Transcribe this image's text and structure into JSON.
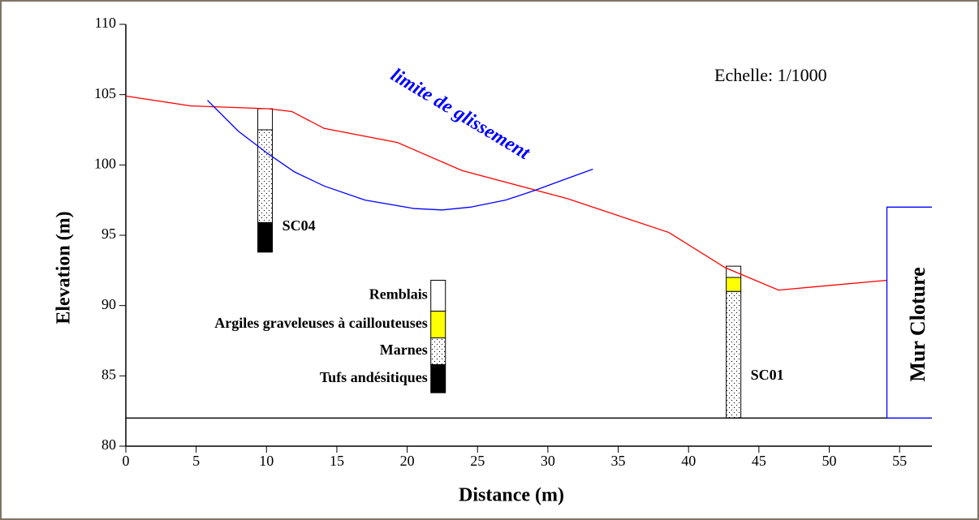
{
  "chart_data": {
    "type": "line",
    "xlabel": "Distance (m)",
    "ylabel": "Elevation (m)",
    "xlim": [
      0,
      57.3
    ],
    "ylim": [
      80,
      110
    ],
    "xticks": [
      0,
      5,
      10,
      15,
      20,
      25,
      30,
      35,
      40,
      45,
      50,
      55
    ],
    "yticks": [
      80,
      85,
      90,
      95,
      100,
      105,
      110
    ],
    "series": [
      {
        "color": "#ff0000",
        "x": [
          0,
          4.6,
          10.1,
          11.8,
          14.1,
          19.3,
          23.9,
          31.4,
          38.6,
          42.6,
          46.4,
          54.1
        ],
        "values": [
          104.9,
          104.2,
          104.0,
          103.8,
          102.6,
          101.6,
          99.6,
          97.6,
          95.2,
          92.7,
          91.1,
          91.8
        ]
      },
      {
        "name": "limite de glissement",
        "color": "#0000ff",
        "x": [
          5.8,
          8,
          10.1,
          12,
          14.1,
          17,
          20.5,
          22.5,
          24.5,
          27,
          29.1,
          31,
          33.2
        ],
        "values": [
          104.6,
          102.4,
          100.8,
          99.5,
          98.5,
          97.5,
          96.9,
          96.8,
          97.0,
          97.5,
          98.2,
          98.9,
          99.7
        ]
      },
      {
        "name": "Mur Cloture",
        "color": "#0000ff",
        "x": [
          57.3,
          54.1,
          54.1,
          57.3
        ],
        "values": [
          82,
          82,
          97,
          97
        ]
      },
      {
        "color": "#000000",
        "x": [
          0,
          54.1
        ],
        "values": [
          82,
          82
        ]
      }
    ],
    "annotation": "Echelle: 1/1000",
    "legend": [
      {
        "name": "Remblais",
        "fill": "#ffffff",
        "top": 91.8,
        "bottom": 89.6
      },
      {
        "name": "Argiles graveleuses à caillouteuses",
        "fill": "#ffff00",
        "top": 89.6,
        "bottom": 87.7
      },
      {
        "name": "Marnes",
        "fill": "dots",
        "top": 87.7,
        "bottom": 85.8
      },
      {
        "name": "Tufs andésitiques",
        "fill": "#000000",
        "top": 85.8,
        "bottom": 83.8
      }
    ],
    "legend_x": 22.2,
    "boreholes": [
      {
        "name": "SC04",
        "x": 9.9,
        "layers": [
          {
            "fill": "#ffffff",
            "top": 104.0,
            "bottom": 102.5
          },
          {
            "fill": "dots",
            "top": 102.5,
            "bottom": 95.9
          },
          {
            "fill": "#000000",
            "top": 95.9,
            "bottom": 93.8
          }
        ]
      },
      {
        "name": "SC01",
        "x": 43.2,
        "layers": [
          {
            "fill": "#ffffff",
            "top": 92.8,
            "bottom": 92.0
          },
          {
            "fill": "#ffff00",
            "top": 92.0,
            "bottom": 91.0
          },
          {
            "fill": "dots",
            "top": 91.0,
            "bottom": 82.0
          }
        ]
      }
    ]
  }
}
